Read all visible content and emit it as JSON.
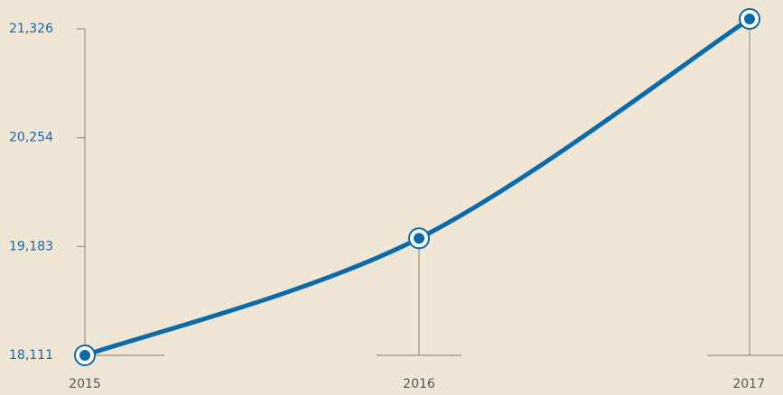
{
  "chart_data": {
    "type": "line",
    "categories": [
      "2015",
      "2016",
      "2017"
    ],
    "series": [
      {
        "name": null,
        "color": "#0b6aa9",
        "values": [
          18111,
          19263,
          21424
        ]
      }
    ],
    "ylim": [
      18111,
      21326
    ],
    "yticks": [
      {
        "value": 18111,
        "label": "18,111"
      },
      {
        "value": 19183,
        "label": "19,183"
      },
      {
        "value": 20254,
        "label": "20,254"
      },
      {
        "value": 21326,
        "label": "21,326"
      }
    ]
  }
}
